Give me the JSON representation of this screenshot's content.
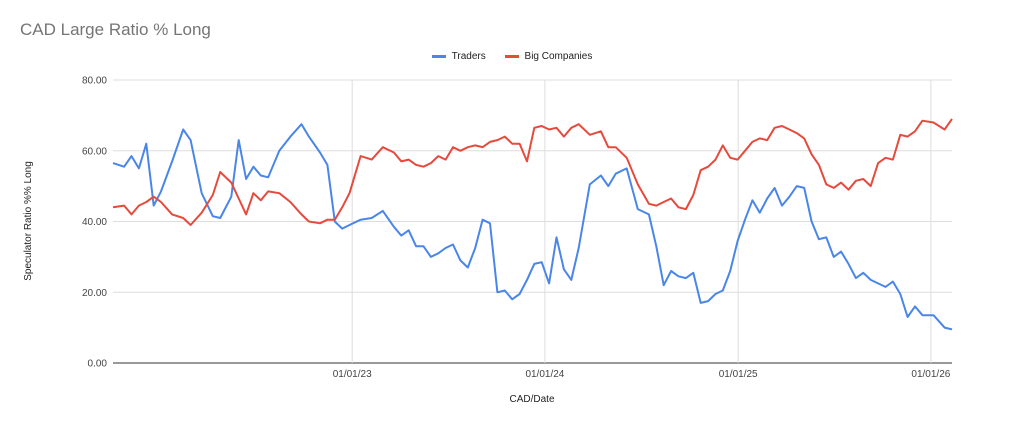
{
  "chart_data": {
    "type": "line",
    "title": "CAD Large Ratio % Long",
    "xlabel": "CAD/Date",
    "ylabel": "Speculator Ratio %% Long",
    "ylim": [
      0,
      80
    ],
    "y_ticks": [
      "0.00",
      "20.00",
      "40.00",
      "60.00",
      "80.00"
    ],
    "x_ticks": [
      {
        "label": "01/01/23",
        "date": "2023-01-01"
      },
      {
        "label": "01/01/24",
        "date": "2024-01-01"
      },
      {
        "label": "01/01/25",
        "date": "2025-01-01"
      },
      {
        "label": "01/01/26",
        "date": "2026-01-01"
      }
    ],
    "x_range": [
      "2021-10-05",
      "2026-02-10"
    ],
    "grid": true,
    "legend_position": "top-center",
    "series": [
      {
        "name": "Traders",
        "color": "#4a86e8",
        "points": [
          [
            "2021-10-05",
            56.5
          ],
          [
            "2021-10-26",
            55.5
          ],
          [
            "2021-11-09",
            58.5
          ],
          [
            "2021-11-23",
            55.0
          ],
          [
            "2021-12-07",
            62.0
          ],
          [
            "2021-12-21",
            44.5
          ],
          [
            "2022-01-04",
            48.5
          ],
          [
            "2022-01-25",
            57.0
          ],
          [
            "2022-02-15",
            66.0
          ],
          [
            "2022-03-01",
            63.0
          ],
          [
            "2022-03-22",
            48.0
          ],
          [
            "2022-04-12",
            41.5
          ],
          [
            "2022-04-26",
            41.0
          ],
          [
            "2022-05-17",
            47.0
          ],
          [
            "2022-05-31",
            63.0
          ],
          [
            "2022-06-14",
            52.0
          ],
          [
            "2022-06-28",
            55.5
          ],
          [
            "2022-07-12",
            53.0
          ],
          [
            "2022-07-26",
            52.5
          ],
          [
            "2022-08-16",
            60.0
          ],
          [
            "2022-09-06",
            64.0
          ],
          [
            "2022-09-27",
            67.5
          ],
          [
            "2022-10-11",
            64.0
          ],
          [
            "2022-11-01",
            59.5
          ],
          [
            "2022-11-15",
            56.0
          ],
          [
            "2022-11-29",
            40.0
          ],
          [
            "2022-12-13",
            38.0
          ],
          [
            "2022-12-27",
            39.0
          ],
          [
            "2023-01-17",
            40.5
          ],
          [
            "2023-02-07",
            41.0
          ],
          [
            "2023-02-28",
            43.0
          ],
          [
            "2023-03-21",
            38.5
          ],
          [
            "2023-04-04",
            36.0
          ],
          [
            "2023-04-18",
            37.5
          ],
          [
            "2023-05-02",
            33.0
          ],
          [
            "2023-05-16",
            33.0
          ],
          [
            "2023-05-30",
            30.0
          ],
          [
            "2023-06-13",
            31.0
          ],
          [
            "2023-06-27",
            32.5
          ],
          [
            "2023-07-11",
            33.5
          ],
          [
            "2023-07-25",
            29.0
          ],
          [
            "2023-08-08",
            27.0
          ],
          [
            "2023-08-22",
            32.5
          ],
          [
            "2023-09-05",
            40.5
          ],
          [
            "2023-09-19",
            39.5
          ],
          [
            "2023-10-03",
            20.0
          ],
          [
            "2023-10-17",
            20.5
          ],
          [
            "2023-10-31",
            18.0
          ],
          [
            "2023-11-14",
            19.5
          ],
          [
            "2023-11-28",
            23.5
          ],
          [
            "2023-12-12",
            28.0
          ],
          [
            "2023-12-26",
            28.5
          ],
          [
            "2024-01-09",
            22.5
          ],
          [
            "2024-01-23",
            35.5
          ],
          [
            "2024-02-06",
            26.5
          ],
          [
            "2024-02-20",
            23.5
          ],
          [
            "2024-03-05",
            32.5
          ],
          [
            "2024-03-26",
            50.5
          ],
          [
            "2024-04-16",
            53.0
          ],
          [
            "2024-04-30",
            50.0
          ],
          [
            "2024-05-14",
            53.5
          ],
          [
            "2024-06-04",
            55.0
          ],
          [
            "2024-06-25",
            43.5
          ],
          [
            "2024-07-16",
            42.0
          ],
          [
            "2024-07-30",
            33.0
          ],
          [
            "2024-08-13",
            22.0
          ],
          [
            "2024-08-27",
            26.0
          ],
          [
            "2024-09-10",
            24.5
          ],
          [
            "2024-09-24",
            24.0
          ],
          [
            "2024-10-08",
            25.5
          ],
          [
            "2024-10-22",
            17.0
          ],
          [
            "2024-11-05",
            17.5
          ],
          [
            "2024-11-19",
            19.5
          ],
          [
            "2024-12-03",
            20.5
          ],
          [
            "2024-12-17",
            26.0
          ],
          [
            "2024-12-31",
            34.5
          ],
          [
            "2025-01-14",
            40.5
          ],
          [
            "2025-01-28",
            46.0
          ],
          [
            "2025-02-11",
            42.5
          ],
          [
            "2025-02-25",
            46.5
          ],
          [
            "2025-03-11",
            49.5
          ],
          [
            "2025-03-25",
            44.5
          ],
          [
            "2025-04-08",
            47.0
          ],
          [
            "2025-04-22",
            50.0
          ],
          [
            "2025-05-06",
            49.5
          ],
          [
            "2025-05-20",
            40.0
          ],
          [
            "2025-06-03",
            35.0
          ],
          [
            "2025-06-17",
            35.5
          ],
          [
            "2025-07-01",
            30.0
          ],
          [
            "2025-07-15",
            31.5
          ],
          [
            "2025-07-29",
            28.0
          ],
          [
            "2025-08-12",
            24.0
          ],
          [
            "2025-08-26",
            25.5
          ],
          [
            "2025-09-09",
            23.5
          ],
          [
            "2025-09-23",
            22.5
          ],
          [
            "2025-10-07",
            21.5
          ],
          [
            "2025-10-21",
            23.0
          ],
          [
            "2025-11-04",
            19.5
          ],
          [
            "2025-11-18",
            13.0
          ],
          [
            "2025-12-02",
            16.0
          ],
          [
            "2025-12-16",
            13.5
          ],
          [
            "2026-01-06",
            13.5
          ],
          [
            "2026-01-27",
            10.0
          ],
          [
            "2026-02-10",
            9.5
          ]
        ]
      },
      {
        "name": "Big Companies",
        "color": "#e64a3c",
        "points": [
          [
            "2021-10-05",
            44.0
          ],
          [
            "2021-10-26",
            44.5
          ],
          [
            "2021-11-09",
            42.0
          ],
          [
            "2021-11-23",
            44.5
          ],
          [
            "2021-12-07",
            45.5
          ],
          [
            "2021-12-21",
            47.0
          ],
          [
            "2022-01-04",
            45.5
          ],
          [
            "2022-01-25",
            42.0
          ],
          [
            "2022-02-15",
            41.0
          ],
          [
            "2022-03-01",
            39.0
          ],
          [
            "2022-03-22",
            42.5
          ],
          [
            "2022-04-12",
            47.5
          ],
          [
            "2022-04-26",
            54.0
          ],
          [
            "2022-05-17",
            51.0
          ],
          [
            "2022-05-31",
            46.5
          ],
          [
            "2022-06-14",
            42.0
          ],
          [
            "2022-06-28",
            48.0
          ],
          [
            "2022-07-12",
            46.0
          ],
          [
            "2022-07-26",
            48.5
          ],
          [
            "2022-08-16",
            48.0
          ],
          [
            "2022-09-06",
            45.5
          ],
          [
            "2022-09-27",
            42.0
          ],
          [
            "2022-10-11",
            40.0
          ],
          [
            "2022-11-01",
            39.5
          ],
          [
            "2022-11-15",
            40.5
          ],
          [
            "2022-11-29",
            40.5
          ],
          [
            "2022-12-13",
            44.0
          ],
          [
            "2022-12-27",
            48.0
          ],
          [
            "2023-01-17",
            58.5
          ],
          [
            "2023-02-07",
            57.5
          ],
          [
            "2023-02-28",
            61.0
          ],
          [
            "2023-03-21",
            59.5
          ],
          [
            "2023-04-04",
            57.0
          ],
          [
            "2023-04-18",
            57.5
          ],
          [
            "2023-05-02",
            56.0
          ],
          [
            "2023-05-16",
            55.5
          ],
          [
            "2023-05-30",
            56.5
          ],
          [
            "2023-06-13",
            58.5
          ],
          [
            "2023-06-27",
            57.5
          ],
          [
            "2023-07-11",
            61.0
          ],
          [
            "2023-07-25",
            60.0
          ],
          [
            "2023-08-08",
            61.0
          ],
          [
            "2023-08-22",
            61.5
          ],
          [
            "2023-09-05",
            61.0
          ],
          [
            "2023-09-19",
            62.5
          ],
          [
            "2023-10-03",
            63.0
          ],
          [
            "2023-10-17",
            64.0
          ],
          [
            "2023-10-31",
            62.0
          ],
          [
            "2023-11-14",
            62.0
          ],
          [
            "2023-11-28",
            57.0
          ],
          [
            "2023-12-12",
            66.5
          ],
          [
            "2023-12-26",
            67.0
          ],
          [
            "2024-01-09",
            66.0
          ],
          [
            "2024-01-23",
            66.5
          ],
          [
            "2024-02-06",
            64.0
          ],
          [
            "2024-02-20",
            66.5
          ],
          [
            "2024-03-05",
            67.5
          ],
          [
            "2024-03-26",
            64.5
          ],
          [
            "2024-04-16",
            65.5
          ],
          [
            "2024-04-30",
            61.0
          ],
          [
            "2024-05-14",
            61.0
          ],
          [
            "2024-06-04",
            58.0
          ],
          [
            "2024-06-25",
            50.5
          ],
          [
            "2024-07-16",
            45.0
          ],
          [
            "2024-07-30",
            44.5
          ],
          [
            "2024-08-13",
            45.5
          ],
          [
            "2024-08-27",
            46.5
          ],
          [
            "2024-09-10",
            44.0
          ],
          [
            "2024-09-24",
            43.5
          ],
          [
            "2024-10-08",
            47.5
          ],
          [
            "2024-10-22",
            54.5
          ],
          [
            "2024-11-05",
            55.5
          ],
          [
            "2024-11-19",
            57.5
          ],
          [
            "2024-12-03",
            61.5
          ],
          [
            "2024-12-17",
            58.0
          ],
          [
            "2024-12-31",
            57.5
          ],
          [
            "2025-01-14",
            60.0
          ],
          [
            "2025-01-28",
            62.5
          ],
          [
            "2025-02-11",
            63.5
          ],
          [
            "2025-02-25",
            63.0
          ],
          [
            "2025-03-11",
            66.5
          ],
          [
            "2025-03-25",
            67.0
          ],
          [
            "2025-04-08",
            66.0
          ],
          [
            "2025-04-22",
            65.0
          ],
          [
            "2025-05-06",
            63.5
          ],
          [
            "2025-05-20",
            59.0
          ],
          [
            "2025-06-03",
            56.0
          ],
          [
            "2025-06-17",
            50.5
          ],
          [
            "2025-07-01",
            49.5
          ],
          [
            "2025-07-15",
            51.0
          ],
          [
            "2025-07-29",
            49.0
          ],
          [
            "2025-08-12",
            51.5
          ],
          [
            "2025-08-26",
            52.0
          ],
          [
            "2025-09-09",
            50.0
          ],
          [
            "2025-09-23",
            56.5
          ],
          [
            "2025-10-07",
            58.0
          ],
          [
            "2025-10-21",
            57.5
          ],
          [
            "2025-11-04",
            64.5
          ],
          [
            "2025-11-18",
            64.0
          ],
          [
            "2025-12-02",
            65.5
          ],
          [
            "2025-12-16",
            68.5
          ],
          [
            "2026-01-06",
            68.0
          ],
          [
            "2026-01-27",
            66.0
          ],
          [
            "2026-02-10",
            69.0
          ]
        ]
      }
    ]
  }
}
